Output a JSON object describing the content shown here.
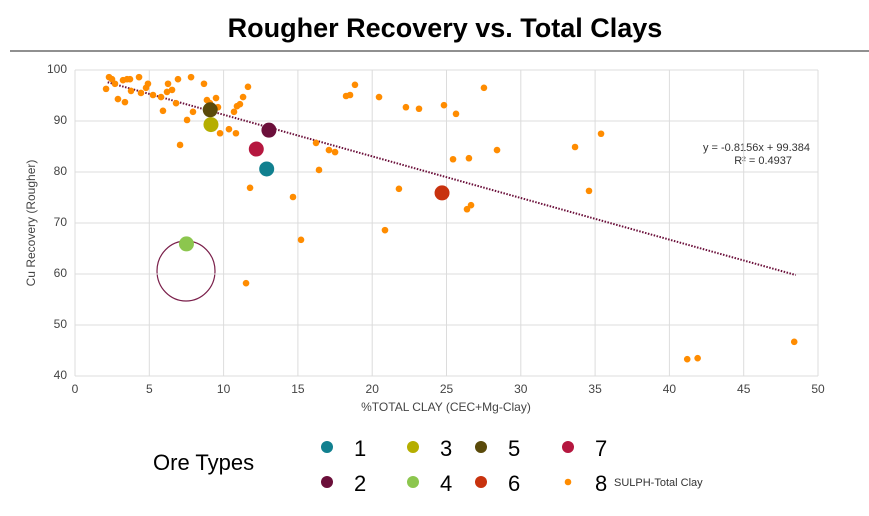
{
  "chart_data": {
    "type": "scatter",
    "title": "Rougher Recovery vs. Total Clays",
    "x_label": "%TOTAL CLAY (CEC+Mg-Clay)",
    "y_label": "Cu Recovery (Rougher)",
    "xlim": [
      0,
      50
    ],
    "xticks": [
      0,
      5,
      10,
      15,
      20,
      25,
      30,
      35,
      40,
      45,
      50
    ],
    "ylim": [
      40,
      100
    ],
    "yticks": [
      40,
      50,
      60,
      70,
      80,
      90,
      100
    ],
    "grid": true,
    "legend_title": "Ore Types",
    "legend_note": "SULPH-Total Clay",
    "annotations": [
      "y = -0.8156x + 99.384",
      "R² = 0.4937"
    ],
    "trendline": {
      "color": "#6b0f3a",
      "x": [
        2.2,
        48.5
      ],
      "y": [
        97.6,
        59.8
      ]
    },
    "series": [
      {
        "name": "1",
        "color": "#11808f",
        "x": [
          12.9
        ],
        "values": [
          80.6
        ]
      },
      {
        "name": "2",
        "color": "#6b0f3a",
        "x": [
          13.05
        ],
        "values": [
          88.2
        ]
      },
      {
        "name": "3",
        "color": "#b5ae00",
        "x": [
          9.15
        ],
        "values": [
          89.3
        ]
      },
      {
        "name": "4",
        "color": "#8cc64e",
        "x": [
          7.5
        ],
        "values": [
          65.9
        ]
      },
      {
        "name": "5",
        "color": "#5a4a0a",
        "x": [
          9.1
        ],
        "values": [
          92.2
        ]
      },
      {
        "name": "6",
        "color": "#c8320e",
        "x": [
          24.7
        ],
        "values": [
          75.9
        ]
      },
      {
        "name": "7",
        "color": "#b5173f",
        "x": [
          12.2
        ],
        "values": [
          84.5
        ]
      },
      {
        "name": "8",
        "color": "#ff8c00",
        "x": [
          2.09,
          2.29,
          2.49,
          2.69,
          2.89,
          3.23,
          3.5,
          3.36,
          3.7,
          3.77,
          4.31,
          4.44,
          4.78,
          4.91,
          5.25,
          5.79,
          5.92,
          6.19,
          6.26,
          6.53,
          6.8,
          6.93,
          7.07,
          7.54,
          7.81,
          7.94,
          8.68,
          8.88,
          9.08,
          9.49,
          9.76,
          9.62,
          10.36,
          10.7,
          10.83,
          10.9,
          11.1,
          11.31,
          11.64,
          11.78,
          11.51,
          14.67,
          15.21,
          16.22,
          16.42,
          17.09,
          17.5,
          18.24,
          18.51,
          18.84,
          20.46,
          20.86,
          21.8,
          22.27,
          23.15,
          24.83,
          25.64,
          25.44,
          26.51,
          26.38,
          26.65,
          27.52,
          28.4,
          33.65,
          34.59,
          35.4,
          41.2,
          41.9,
          48.4
        ],
        "values": [
          96.3,
          98.6,
          98.2,
          97.3,
          94.3,
          98.0,
          98.2,
          93.7,
          98.2,
          95.9,
          98.6,
          95.5,
          96.5,
          97.3,
          95.1,
          94.7,
          92.0,
          95.7,
          97.3,
          96.1,
          93.5,
          98.2,
          85.3,
          90.2,
          98.6,
          91.8,
          97.3,
          94.1,
          93.5,
          94.5,
          87.6,
          92.7,
          88.4,
          91.8,
          87.6,
          92.9,
          93.3,
          94.7,
          96.7,
          76.9,
          58.2,
          75.1,
          66.7,
          85.7,
          80.4,
          84.3,
          83.9,
          94.9,
          95.1,
          97.1,
          94.7,
          68.6,
          76.7,
          92.7,
          92.4,
          93.1,
          91.4,
          82.5,
          82.7,
          72.7,
          73.5,
          96.5,
          84.3,
          84.9,
          76.3,
          87.5,
          43.3,
          43.5,
          46.7
        ]
      }
    ]
  }
}
